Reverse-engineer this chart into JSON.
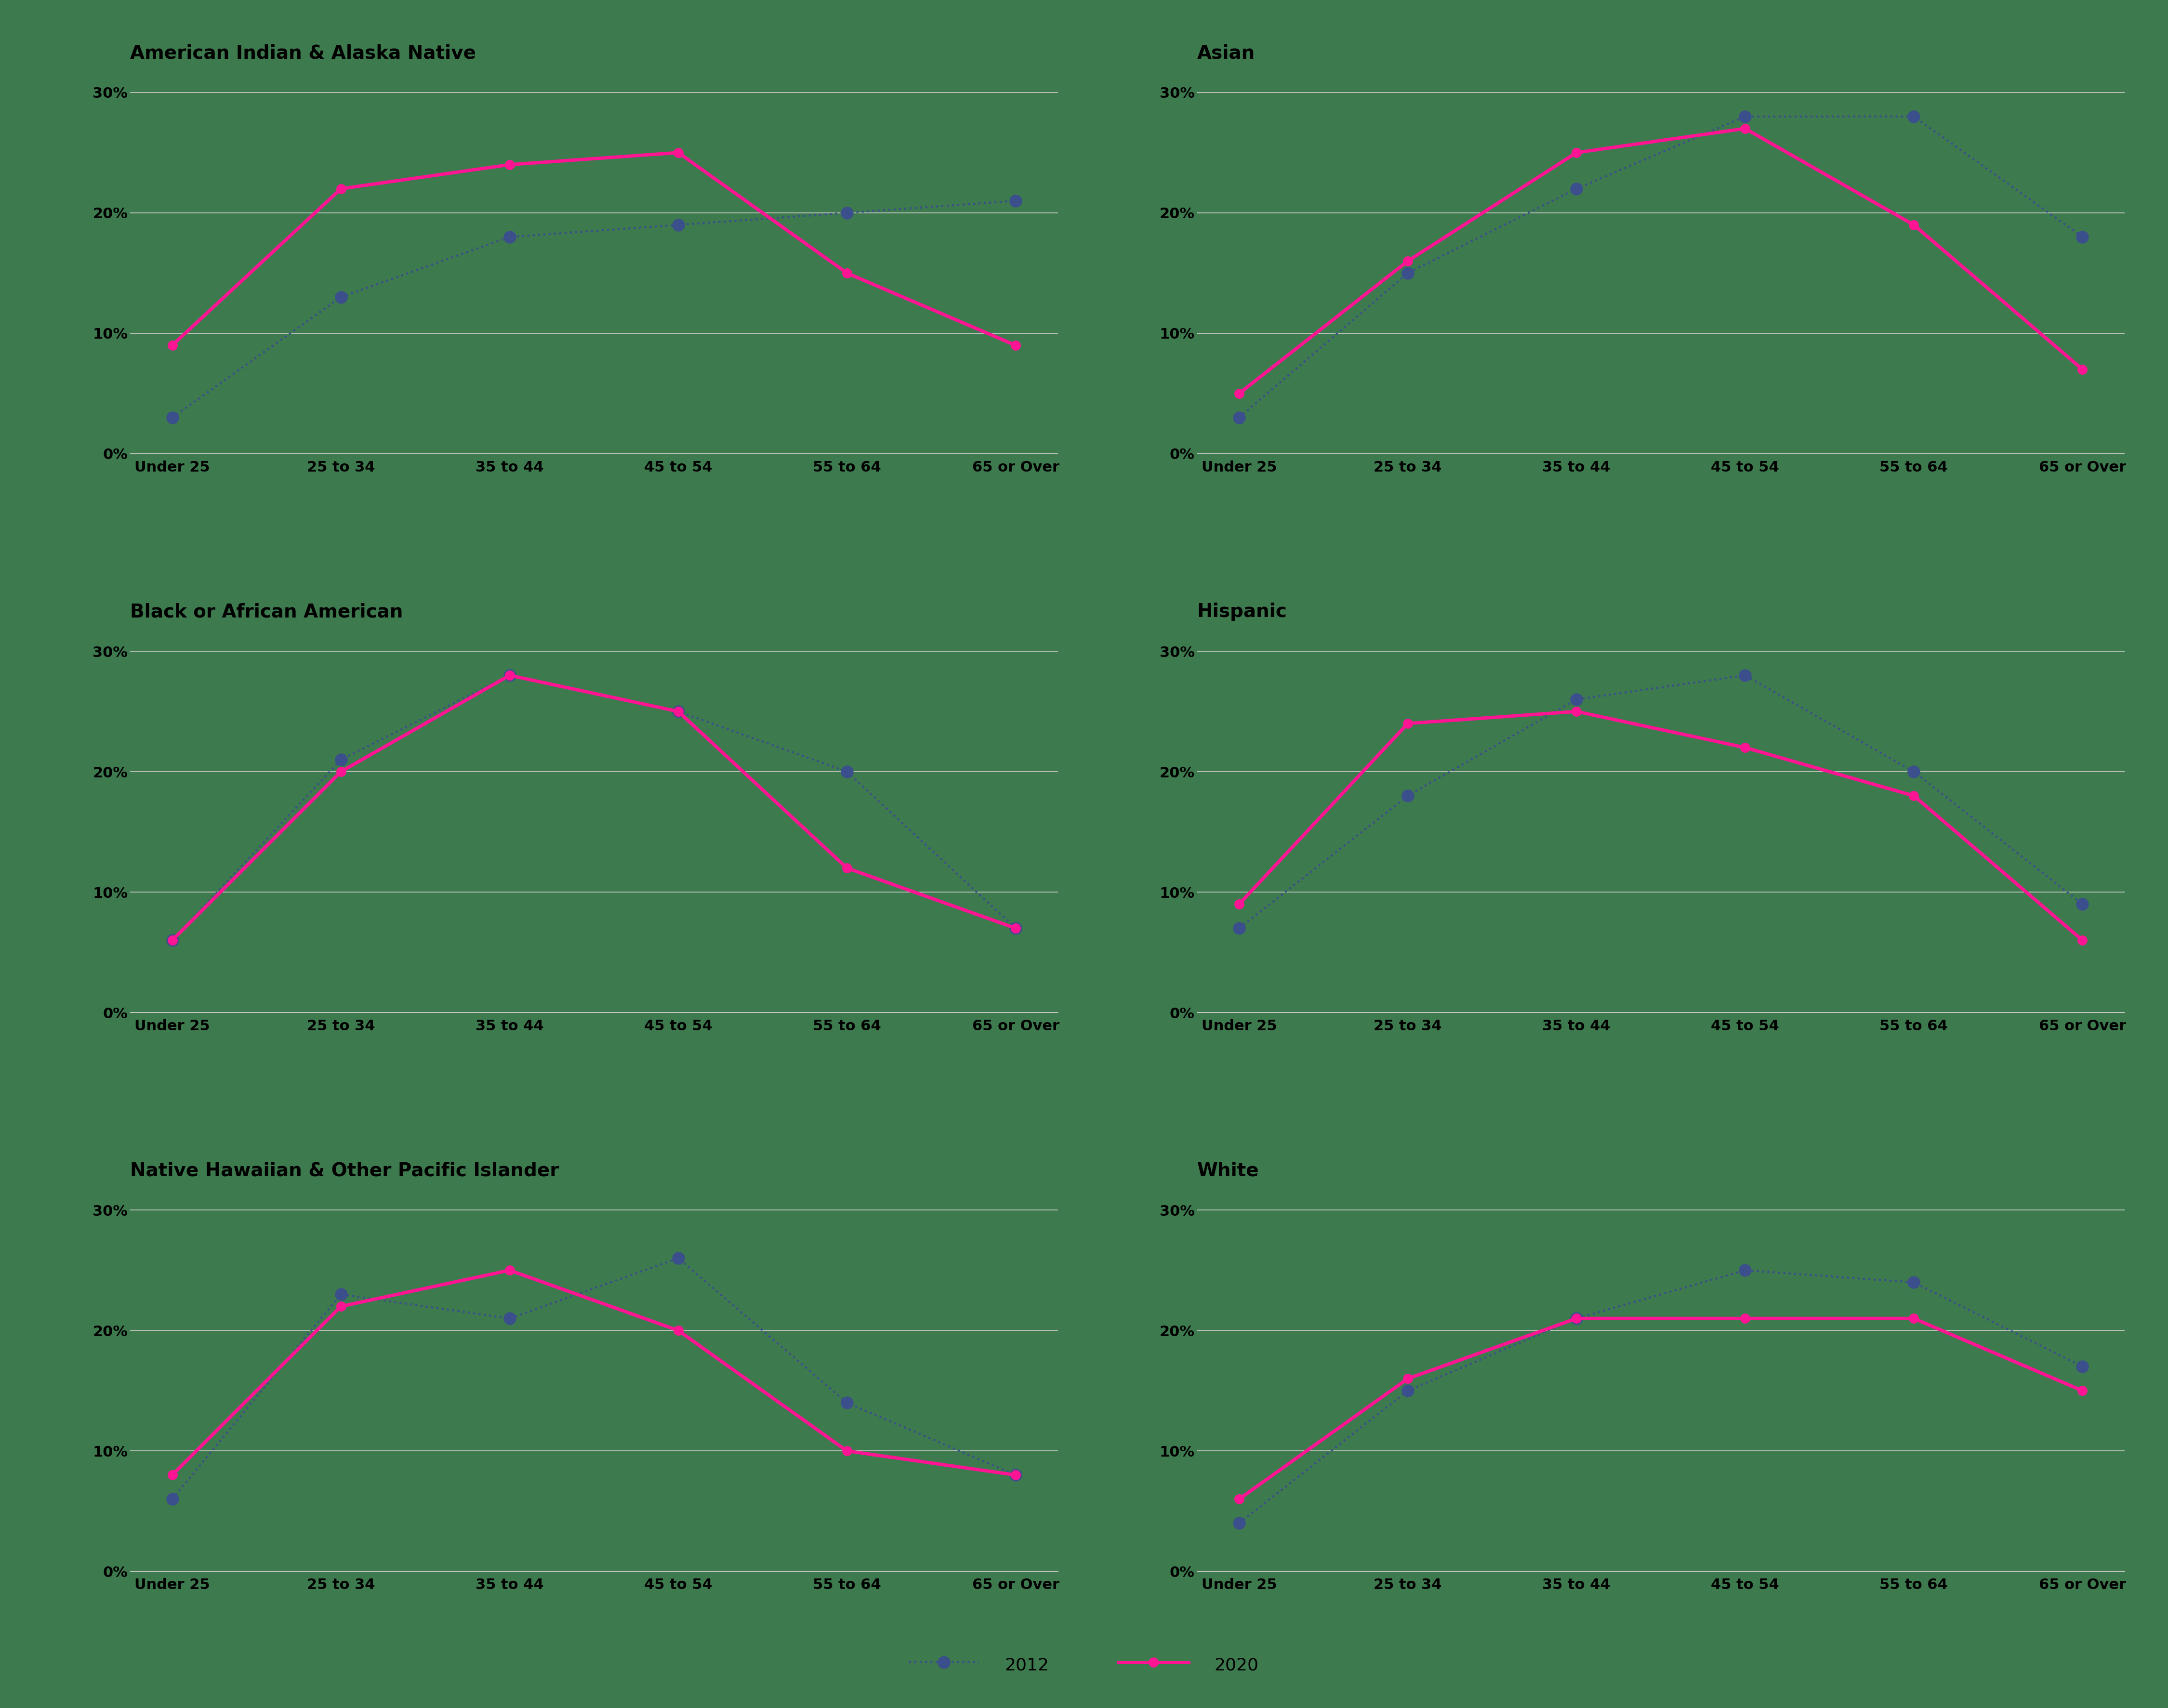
{
  "categories": [
    "Under 25",
    "25 to 34",
    "35 to 44",
    "45 to 54",
    "55 to 64",
    "65 or Over"
  ],
  "subplots": [
    {
      "title": "American Indian & Alaska Native",
      "data_2012": [
        3,
        13,
        18,
        19,
        20,
        21
      ],
      "data_2020": [
        9,
        22,
        24,
        25,
        15,
        9
      ]
    },
    {
      "title": "Asian",
      "data_2012": [
        3,
        15,
        22,
        28,
        28,
        18
      ],
      "data_2020": [
        5,
        16,
        25,
        27,
        19,
        7
      ]
    },
    {
      "title": "Black or African American",
      "data_2012": [
        6,
        21,
        28,
        25,
        20,
        7
      ],
      "data_2020": [
        6,
        20,
        28,
        25,
        12,
        7
      ]
    },
    {
      "title": "Hispanic",
      "data_2012": [
        7,
        18,
        26,
        28,
        20,
        9
      ],
      "data_2020": [
        9,
        24,
        25,
        22,
        18,
        6
      ]
    },
    {
      "title": "Native Hawaiian & Other Pacific Islander",
      "data_2012": [
        6,
        23,
        21,
        26,
        14,
        8
      ],
      "data_2020": [
        8,
        22,
        25,
        20,
        10,
        8
      ]
    },
    {
      "title": "White",
      "data_2012": [
        4,
        15,
        21,
        25,
        24,
        17
      ],
      "data_2020": [
        6,
        16,
        21,
        21,
        21,
        15
      ]
    }
  ],
  "color_2012": "#3B4F8C",
  "color_2020": "#FF1493",
  "background_color": "#3d7a4e",
  "text_color": "#000000",
  "grid_color": "#cccccc",
  "ylim": [
    0,
    32
  ],
  "yticks": [
    0,
    10,
    20,
    30
  ],
  "ytick_labels": [
    "0%",
    "10%",
    "20%",
    "30%"
  ],
  "title_fontsize": 28,
  "tick_fontsize": 22,
  "legend_fontsize": 26,
  "linewidth_2020": 5,
  "linewidth_2012": 3,
  "markersize_2020": 14,
  "markersize_2012": 18
}
